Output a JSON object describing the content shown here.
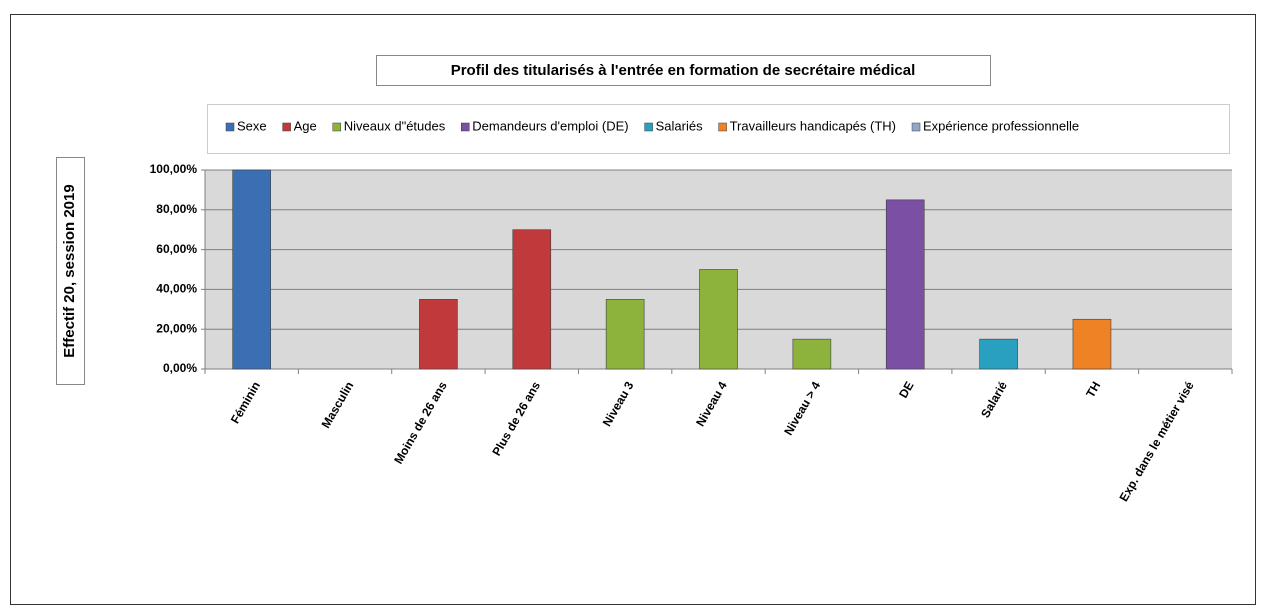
{
  "chart_data": {
    "type": "bar",
    "title": "Profil des titularisés à l'entrée en formation de secrétaire médical",
    "y_label": "Effectif  20, session 2019",
    "categories": [
      "Féminin",
      "Masculin",
      "Moins de 26 ans",
      "Plus de 26 ans",
      "Niveau 3",
      "Niveau 4",
      "Niveau > 4",
      "DE",
      "Salarié",
      "TH",
      "Exp. dans le métier visé"
    ],
    "series": [
      {
        "name": "Sexe",
        "color": "#3a6fb4",
        "values": [
          100,
          0,
          null,
          null,
          null,
          null,
          null,
          null,
          null,
          null,
          null
        ]
      },
      {
        "name": "Age",
        "color": "#c0393b",
        "values": [
          null,
          null,
          35,
          70,
          null,
          null,
          null,
          null,
          null,
          null,
          null
        ]
      },
      {
        "name": "Niveaux d\"études",
        "color": "#8db33c",
        "values": [
          null,
          null,
          null,
          null,
          35,
          50,
          15,
          null,
          null,
          null,
          null
        ]
      },
      {
        "name": "Demandeurs d'emploi (DE)",
        "color": "#7a4fa4",
        "values": [
          null,
          null,
          null,
          null,
          null,
          null,
          null,
          85,
          null,
          null,
          null
        ]
      },
      {
        "name": "Salariés",
        "color": "#2aa0c0",
        "values": [
          null,
          null,
          null,
          null,
          null,
          null,
          null,
          null,
          15,
          null,
          null
        ]
      },
      {
        "name": "Travailleurs handicapés (TH)",
        "color": "#ee8224",
        "values": [
          null,
          null,
          null,
          null,
          null,
          null,
          null,
          null,
          null,
          25,
          null
        ]
      },
      {
        "name": "Expérience professionnelle",
        "color": "#8ea8cc",
        "values": [
          null,
          null,
          null,
          null,
          null,
          null,
          null,
          null,
          null,
          null,
          0
        ]
      }
    ],
    "ylim": [
      0,
      100
    ],
    "yticks": [
      {
        "value": 0,
        "label": "0,00%"
      },
      {
        "value": 20,
        "label": "20,00%"
      },
      {
        "value": 40,
        "label": "40,00%"
      },
      {
        "value": 60,
        "label": "60,00%"
      },
      {
        "value": 80,
        "label": "80,00%"
      },
      {
        "value": 100,
        "label": "100,00%"
      }
    ],
    "grid": true,
    "legend": "top"
  }
}
